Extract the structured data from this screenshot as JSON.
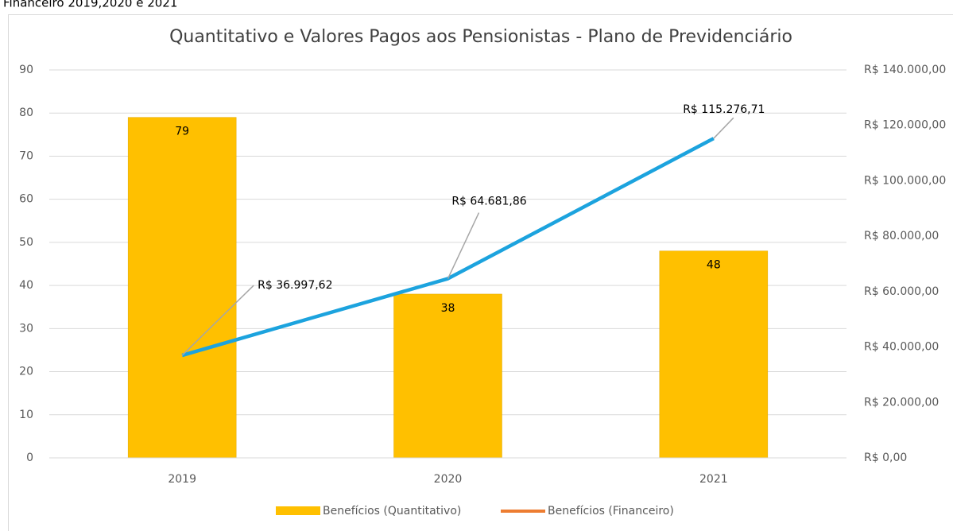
{
  "caption": "Financeiro 2019,2020 e 2021",
  "chart_data": {
    "type": "bar-line",
    "title": "Quantitativo e Valores Pagos aos Pensionistas - Plano de Previdenciário",
    "categories": [
      "2019",
      "2020",
      "2021"
    ],
    "series": [
      {
        "name": "Benefícios (Quantitativo)",
        "type": "bar",
        "color": "#ffc000",
        "values": [
          79,
          38,
          48
        ]
      },
      {
        "name": "Benefícios (Financeiro)",
        "type": "line",
        "axis": "y2",
        "color": "#1ca3de",
        "legend_color": "#ed7d31",
        "values": [
          36997.62,
          64681.86,
          115276.71
        ],
        "value_labels": [
          "R$ 36.997,62",
          "R$ 64.681,86",
          "R$ 115.276,71"
        ]
      }
    ],
    "ylim": [
      0,
      90
    ],
    "yticks": [
      0,
      10,
      20,
      30,
      40,
      50,
      60,
      70,
      80,
      90
    ],
    "y2lim": [
      0,
      140000
    ],
    "y2ticks": [
      {
        "value": 0,
        "label": "R$ 0,00"
      },
      {
        "value": 20000,
        "label": "R$ 20.000,00"
      },
      {
        "value": 40000,
        "label": "R$ 40.000,00"
      },
      {
        "value": 60000,
        "label": "R$ 60.000,00"
      },
      {
        "value": 80000,
        "label": "R$ 80.000,00"
      },
      {
        "value": 100000,
        "label": "R$ 100.000,00"
      },
      {
        "value": 120000,
        "label": "R$ 120.000,00"
      },
      {
        "value": 140000,
        "label": "R$ 140.000,00"
      }
    ],
    "grid": true,
    "legend": "bottom"
  }
}
